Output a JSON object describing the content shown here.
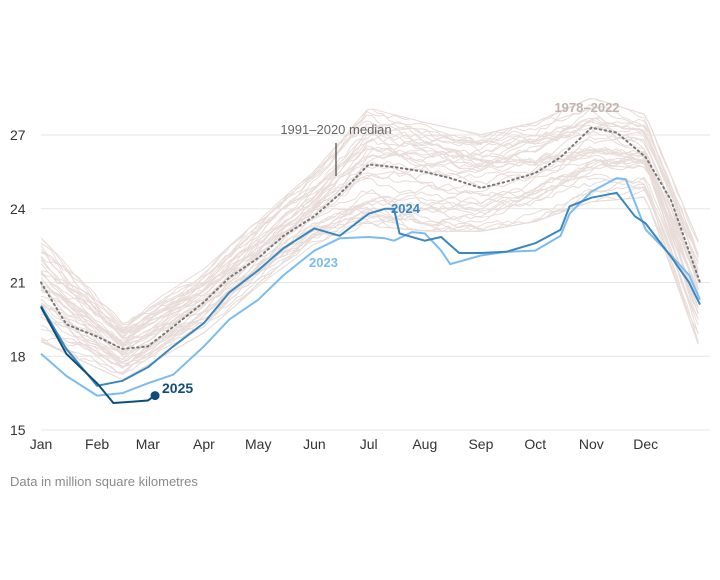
{
  "chart_data": {
    "type": "line",
    "title": "",
    "xlabel": "",
    "ylabel": "",
    "ylim": [
      15,
      28.6
    ],
    "yticks": [
      "15",
      "18",
      "21",
      "24",
      "27"
    ],
    "xticks": [
      "Jan",
      "Feb",
      "Mar",
      "Apr",
      "May",
      "Jun",
      "Jul",
      "Aug",
      "Sep",
      "Oct",
      "Nov",
      "Dec"
    ],
    "grid": true,
    "legend": "none",
    "unit_note": "Data in million square kilometres",
    "colors": {
      "2025": "#0d4f7a",
      "2024": "#3a87bf",
      "2023": "#7cbcf0",
      "history": "#e8dcd8",
      "median": "#777777",
      "grid": "#e6e6e6"
    },
    "historical": {
      "label": "1978–2022",
      "years": 45,
      "upper": [
        [
          "01-01",
          22.9
        ],
        [
          "02-15",
          19.5
        ],
        [
          "04-01",
          21.6
        ],
        [
          "05-01",
          23.6
        ],
        [
          "06-01",
          25.6
        ],
        [
          "07-01",
          28.2
        ],
        [
          "08-01",
          27.6
        ],
        [
          "09-01",
          27.1
        ],
        [
          "10-01",
          27.6
        ],
        [
          "11-01",
          28.6
        ],
        [
          "12-01",
          27.9
        ],
        [
          "12-31",
          22.6
        ]
      ],
      "lower": [
        [
          "01-01",
          18.5
        ],
        [
          "02-15",
          17.0
        ],
        [
          "04-01",
          18.9
        ],
        [
          "05-01",
          20.8
        ],
        [
          "06-01",
          22.5
        ],
        [
          "07-01",
          23.2
        ],
        [
          "08-01",
          23.0
        ],
        [
          "09-01",
          23.0
        ],
        [
          "10-01",
          23.4
        ],
        [
          "11-01",
          24.2
        ],
        [
          "12-01",
          24.4
        ],
        [
          "12-31",
          18.2
        ]
      ]
    },
    "series": [
      {
        "name": "1991–2020 median",
        "style": "dotted",
        "points": [
          [
            "01-01",
            21.0
          ],
          [
            "01-15",
            19.3
          ],
          [
            "02-01",
            18.8
          ],
          [
            "02-15",
            18.3
          ],
          [
            "03-01",
            18.4
          ],
          [
            "03-15",
            19.2
          ],
          [
            "04-01",
            20.2
          ],
          [
            "04-15",
            21.2
          ],
          [
            "05-01",
            22.0
          ],
          [
            "05-15",
            22.9
          ],
          [
            "06-01",
            23.7
          ],
          [
            "06-15",
            24.6
          ],
          [
            "07-01",
            25.8
          ],
          [
            "07-15",
            25.7
          ],
          [
            "08-01",
            25.5
          ],
          [
            "08-15",
            25.25
          ],
          [
            "09-01",
            24.85
          ],
          [
            "09-15",
            25.1
          ],
          [
            "10-01",
            25.45
          ],
          [
            "10-15",
            26.1
          ],
          [
            "11-01",
            27.3
          ],
          [
            "11-15",
            27.1
          ],
          [
            "12-01",
            26.1
          ],
          [
            "12-15",
            24.35
          ],
          [
            "12-31",
            21.0
          ]
        ]
      },
      {
        "name": "2023",
        "points": [
          [
            "01-01",
            18.1
          ],
          [
            "01-15",
            17.2
          ],
          [
            "02-01",
            16.4
          ],
          [
            "02-15",
            16.5
          ],
          [
            "03-01",
            16.9
          ],
          [
            "03-15",
            17.25
          ],
          [
            "04-01",
            18.4
          ],
          [
            "04-15",
            19.5
          ],
          [
            "05-01",
            20.3
          ],
          [
            "05-15",
            21.3
          ],
          [
            "06-01",
            22.3
          ],
          [
            "06-15",
            22.8
          ],
          [
            "07-01",
            22.85
          ],
          [
            "07-10",
            22.8
          ],
          [
            "07-15",
            22.7
          ],
          [
            "07-25",
            23.05
          ],
          [
            "08-01",
            23.0
          ],
          [
            "08-10",
            22.3
          ],
          [
            "08-15",
            21.75
          ],
          [
            "09-01",
            22.1
          ],
          [
            "09-15",
            22.25
          ],
          [
            "10-01",
            22.3
          ],
          [
            "10-15",
            22.9
          ],
          [
            "10-20",
            23.8
          ],
          [
            "11-01",
            24.7
          ],
          [
            "11-15",
            25.25
          ],
          [
            "11-20",
            25.2
          ],
          [
            "12-01",
            23.15
          ],
          [
            "12-15",
            22.1
          ],
          [
            "12-25",
            21.3
          ],
          [
            "12-31",
            20.3
          ]
        ]
      },
      {
        "name": "2024",
        "points": [
          [
            "01-01",
            20.05
          ],
          [
            "01-15",
            18.3
          ],
          [
            "02-01",
            16.8
          ],
          [
            "02-15",
            17.0
          ],
          [
            "03-01",
            17.55
          ],
          [
            "03-15",
            18.4
          ],
          [
            "04-01",
            19.35
          ],
          [
            "04-15",
            20.6
          ],
          [
            "05-01",
            21.5
          ],
          [
            "05-15",
            22.4
          ],
          [
            "06-01",
            23.2
          ],
          [
            "06-15",
            22.9
          ],
          [
            "07-01",
            23.8
          ],
          [
            "07-10",
            24.0
          ],
          [
            "07-15",
            24.0
          ],
          [
            "07-18",
            23.0
          ],
          [
            "08-01",
            22.7
          ],
          [
            "08-10",
            22.85
          ],
          [
            "08-20",
            22.2
          ],
          [
            "09-01",
            22.2
          ],
          [
            "09-15",
            22.25
          ],
          [
            "10-01",
            22.6
          ],
          [
            "10-15",
            23.15
          ],
          [
            "10-20",
            24.1
          ],
          [
            "11-01",
            24.45
          ],
          [
            "11-15",
            24.65
          ],
          [
            "11-25",
            23.7
          ],
          [
            "12-01",
            23.4
          ],
          [
            "12-15",
            22.05
          ],
          [
            "12-25",
            21.0
          ],
          [
            "12-31",
            20.1
          ]
        ]
      },
      {
        "name": "2025",
        "points": [
          [
            "01-01",
            20.0
          ],
          [
            "01-15",
            18.1
          ],
          [
            "02-01",
            16.9
          ],
          [
            "02-10",
            16.1
          ],
          [
            "02-20",
            16.15
          ],
          [
            "03-01",
            16.2
          ],
          [
            "03-05",
            16.4
          ]
        ]
      }
    ]
  }
}
